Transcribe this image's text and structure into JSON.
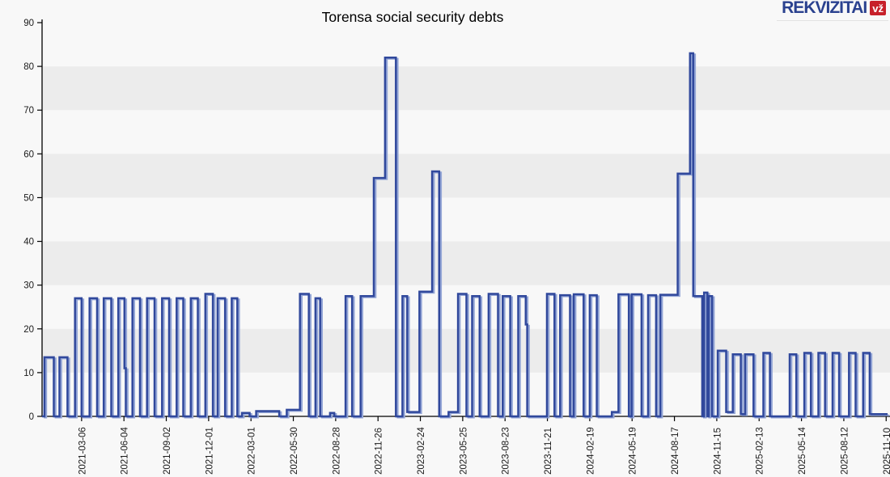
{
  "page": {
    "background": "#f8f8f8"
  },
  "logo": {
    "text": "REKVIZITAI",
    "badge": "vž",
    "text_color": "#2a418f",
    "badge_bg": "#c7202a",
    "badge_text_color": "#ffffff"
  },
  "chart_data": {
    "type": "line",
    "subtype": "step",
    "title": "Torensa social security debts",
    "xlabel": "",
    "ylabel": "",
    "legend": "none",
    "grid": "horizontal-bands",
    "ylim": [
      0,
      90
    ],
    "y_ticks": [
      0,
      10,
      20,
      30,
      40,
      50,
      60,
      70,
      80,
      90
    ],
    "x_domain": [
      "2020-12-12",
      "2025-11-13"
    ],
    "x_tick_labels": [
      "2021-03-06",
      "2021-06-04",
      "2021-09-02",
      "2021-12-01",
      "2022-03-01",
      "2022-05-30",
      "2022-08-28",
      "2022-11-26",
      "2023-02-24",
      "2023-05-25",
      "2023-08-23",
      "2023-11-21",
      "2024-02-19",
      "2024-05-19",
      "2024-08-17",
      "2024-11-15",
      "2025-02-13",
      "2025-05-14",
      "2025-08-12",
      "2025-11-10"
    ],
    "plot_bands": {
      "gray": [
        [
          10,
          20
        ],
        [
          30,
          40
        ],
        [
          50,
          60
        ],
        [
          70,
          80
        ]
      ],
      "gray_color": "#ececec",
      "light_color": "#f8f8f8"
    },
    "axis_color": "#000000",
    "tick_text_color": "#1a1a1a",
    "series": [
      {
        "name": "social security debt",
        "color": "#30489c",
        "highlight_color": "#93a5d6",
        "steps": [
          [
            "2020-12-12",
            0
          ],
          [
            "2020-12-17",
            13.5
          ],
          [
            "2021-01-06",
            0
          ],
          [
            "2021-01-18",
            13.5
          ],
          [
            "2021-02-04",
            0
          ],
          [
            "2021-02-20",
            27
          ],
          [
            "2021-03-06",
            0
          ],
          [
            "2021-03-23",
            27
          ],
          [
            "2021-04-08",
            0
          ],
          [
            "2021-04-22",
            27
          ],
          [
            "2021-05-08",
            0
          ],
          [
            "2021-05-23",
            27
          ],
          [
            "2021-06-05",
            11
          ],
          [
            "2021-06-08",
            0
          ],
          [
            "2021-06-22",
            27
          ],
          [
            "2021-07-08",
            0
          ],
          [
            "2021-07-23",
            27
          ],
          [
            "2021-08-08",
            0
          ],
          [
            "2021-08-24",
            27
          ],
          [
            "2021-09-08",
            0
          ],
          [
            "2021-09-24",
            27
          ],
          [
            "2021-10-08",
            0
          ],
          [
            "2021-10-24",
            27
          ],
          [
            "2021-11-08",
            0
          ],
          [
            "2021-11-24",
            28
          ],
          [
            "2021-12-10",
            0
          ],
          [
            "2021-12-20",
            27
          ],
          [
            "2022-01-05",
            0
          ],
          [
            "2022-01-19",
            27
          ],
          [
            "2022-01-31",
            0
          ],
          [
            "2022-02-10",
            0.8
          ],
          [
            "2022-02-26",
            0
          ],
          [
            "2022-03-12",
            1.2
          ],
          [
            "2022-04-30",
            0
          ],
          [
            "2022-05-16",
            1.5
          ],
          [
            "2022-06-13",
            28
          ],
          [
            "2022-07-02",
            0
          ],
          [
            "2022-07-16",
            27
          ],
          [
            "2022-07-26",
            0
          ],
          [
            "2022-08-16",
            0.8
          ],
          [
            "2022-08-25",
            0
          ],
          [
            "2022-09-18",
            27.5
          ],
          [
            "2022-10-02",
            0
          ],
          [
            "2022-10-20",
            27.5
          ],
          [
            "2022-11-17",
            54.5
          ],
          [
            "2022-12-11",
            82
          ],
          [
            "2023-01-03",
            0
          ],
          [
            "2023-01-17",
            27.5
          ],
          [
            "2023-01-27",
            1
          ],
          [
            "2023-02-22",
            28.5
          ],
          [
            "2023-03-21",
            56
          ],
          [
            "2023-04-05",
            0
          ],
          [
            "2023-04-25",
            1
          ],
          [
            "2023-05-15",
            28
          ],
          [
            "2023-06-02",
            0
          ],
          [
            "2023-06-14",
            27.5
          ],
          [
            "2023-06-30",
            0
          ],
          [
            "2023-07-19",
            28
          ],
          [
            "2023-08-08",
            0
          ],
          [
            "2023-08-18",
            27.5
          ],
          [
            "2023-09-03",
            0
          ],
          [
            "2023-09-20",
            27.5
          ],
          [
            "2023-10-06",
            21
          ],
          [
            "2023-10-09",
            0
          ],
          [
            "2023-11-20",
            28
          ],
          [
            "2023-12-06",
            0
          ],
          [
            "2023-12-18",
            27.7
          ],
          [
            "2024-01-08",
            0
          ],
          [
            "2024-01-16",
            27.9
          ],
          [
            "2024-02-06",
            0
          ],
          [
            "2024-02-19",
            27.7
          ],
          [
            "2024-03-05",
            0
          ],
          [
            "2024-04-06",
            1
          ],
          [
            "2024-04-20",
            27.9
          ],
          [
            "2024-05-12",
            0
          ],
          [
            "2024-05-18",
            27.9
          ],
          [
            "2024-06-08",
            0
          ],
          [
            "2024-06-22",
            27.7
          ],
          [
            "2024-07-09",
            0
          ],
          [
            "2024-07-18",
            27.8
          ],
          [
            "2024-08-24",
            55.5
          ],
          [
            "2024-09-19",
            83
          ],
          [
            "2024-09-26",
            27.5
          ],
          [
            "2024-10-15",
            0
          ],
          [
            "2024-10-19",
            28.3
          ],
          [
            "2024-10-26",
            0
          ],
          [
            "2024-10-29",
            27.5
          ],
          [
            "2024-11-05",
            0
          ],
          [
            "2024-11-17",
            15
          ],
          [
            "2024-12-05",
            1
          ],
          [
            "2024-12-19",
            14.2
          ],
          [
            "2025-01-05",
            0.5
          ],
          [
            "2025-01-14",
            14.2
          ],
          [
            "2025-02-01",
            0
          ],
          [
            "2025-02-22",
            14.5
          ],
          [
            "2025-03-08",
            0
          ],
          [
            "2025-04-19",
            14.2
          ],
          [
            "2025-05-03",
            0
          ],
          [
            "2025-05-20",
            14.5
          ],
          [
            "2025-06-03",
            0
          ],
          [
            "2025-06-19",
            14.5
          ],
          [
            "2025-07-03",
            0
          ],
          [
            "2025-07-19",
            14.5
          ],
          [
            "2025-08-02",
            0
          ],
          [
            "2025-08-23",
            14.5
          ],
          [
            "2025-09-06",
            0
          ],
          [
            "2025-09-22",
            14.5
          ],
          [
            "2025-10-06",
            0.5
          ],
          [
            "2025-11-13",
            0.5
          ]
        ]
      }
    ]
  }
}
